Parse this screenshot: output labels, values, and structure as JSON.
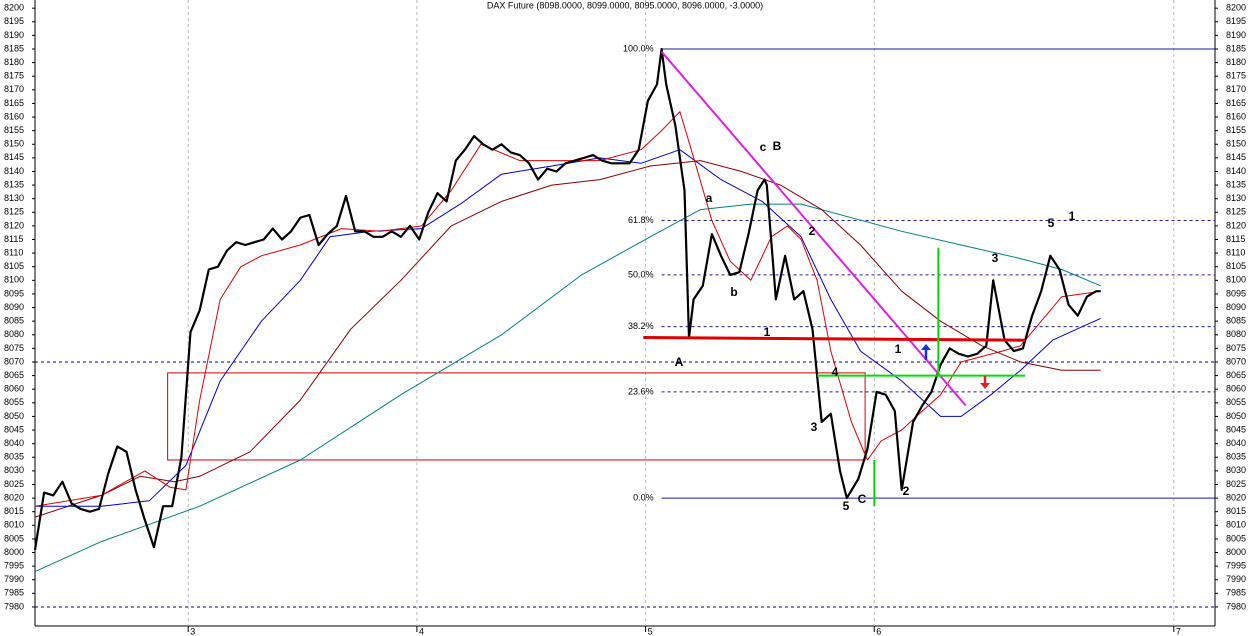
{
  "chart_data": {
    "type": "line",
    "title": "DAX Future (8098.0000, 8099.0000, 8095.0000, 8096.0000, -3.0000)",
    "xlim": [
      2.33,
      7.49
    ],
    "xticks": [
      3,
      4,
      5,
      6,
      {
        "value": 7.31,
        "label": "7"
      }
    ],
    "ylim": [
      7973,
      8203
    ],
    "yticks": [
      7980,
      7985,
      7990,
      7995,
      8000,
      8005,
      8010,
      8015,
      8020,
      8025,
      8030,
      8035,
      8040,
      8045,
      8050,
      8055,
      8060,
      8065,
      8070,
      8075,
      8080,
      8085,
      8090,
      8095,
      8100,
      8105,
      8110,
      8115,
      8120,
      8125,
      8130,
      8135,
      8140,
      8145,
      8150,
      8155,
      8160,
      8165,
      8170,
      8175,
      8180,
      8185,
      8190,
      8195,
      8200
    ],
    "grid": true,
    "series": [
      {
        "color": "#000000",
        "x": [
          2.33,
          2.37,
          2.41,
          2.45,
          2.49,
          2.53,
          2.57,
          2.61,
          2.65,
          2.69,
          2.73,
          2.77,
          2.81,
          2.85,
          2.89,
          2.93,
          2.97,
          3.01,
          3.05,
          3.09,
          3.13,
          3.17,
          3.21,
          3.25,
          3.29,
          3.33,
          3.37,
          3.41,
          3.45,
          3.49,
          3.53,
          3.57,
          3.61,
          3.65,
          3.69,
          3.73,
          3.77,
          3.81,
          3.85,
          3.89,
          3.93,
          3.97,
          4.01,
          4.05,
          4.09,
          4.13,
          4.17,
          4.21,
          4.25,
          4.29,
          4.33,
          4.37,
          4.41,
          4.45,
          4.49,
          4.53,
          4.57,
          4.61,
          4.65,
          4.69,
          4.73,
          4.77,
          4.81,
          4.85,
          4.89,
          4.93,
          4.97,
          5.01,
          5.05,
          5.07,
          5.09,
          5.13,
          5.17,
          5.19,
          5.21,
          5.25,
          5.29,
          5.33,
          5.37,
          5.41,
          5.45,
          5.49,
          5.52,
          5.53,
          5.57,
          5.61,
          5.65,
          5.69,
          5.73,
          5.77,
          5.81,
          5.85,
          5.88,
          5.93,
          5.97,
          6.01,
          6.05,
          6.09,
          6.12,
          6.17,
          6.21,
          6.25,
          6.29,
          6.33,
          6.37,
          6.41,
          6.45,
          6.49,
          6.52,
          6.57,
          6.61,
          6.65,
          6.69,
          6.73,
          6.77,
          6.81,
          6.85,
          6.89,
          6.93,
          6.97,
          6.99
        ],
        "values": [
          8001,
          8022,
          8021,
          8026,
          8018,
          8016,
          8015,
          8016,
          8029,
          8039,
          8037,
          8023,
          8012,
          8002,
          8017,
          8017,
          8035,
          8081,
          8089,
          8104,
          8105,
          8111,
          8114,
          8113,
          8114,
          8115,
          8119,
          8115,
          8118,
          8123,
          8124,
          8113,
          8117,
          8120,
          8131,
          8118,
          8118,
          8116,
          8116,
          8118,
          8116,
          8120,
          8115,
          8125,
          8132,
          8129,
          8144,
          8148,
          8153,
          8150,
          8148,
          8150,
          8147,
          8146,
          8143,
          8137,
          8141,
          8140,
          8143,
          8144,
          8145,
          8146,
          8144,
          8143,
          8143,
          8143,
          8148,
          8166,
          8172,
          8185,
          8172,
          8157,
          8133,
          8079,
          8093,
          8098,
          8117,
          8109,
          8102,
          8103,
          8117,
          8133,
          8137,
          8135,
          8093,
          8109,
          8093,
          8096,
          8082,
          8048,
          8051,
          8030,
          8020,
          8027,
          8038,
          8059,
          8058,
          8052,
          8023,
          8048,
          8054,
          8059,
          8069,
          8075,
          8073,
          8072,
          8073,
          8076,
          8100,
          8078,
          8074,
          8075,
          8087,
          8096,
          8109,
          8104,
          8091,
          8087,
          8094,
          8096,
          8096
        ]
      },
      {
        "color": "#e00000",
        "x": [
          2.33,
          2.62,
          2.81,
          2.92,
          2.99,
          3.05,
          3.14,
          3.23,
          3.32,
          3.49,
          3.67,
          3.84,
          4.02,
          4.15,
          4.28,
          4.45,
          4.63,
          4.8,
          4.98,
          5.07,
          5.15,
          5.2,
          5.29,
          5.37,
          5.46,
          5.55,
          5.62,
          5.68,
          5.75,
          5.81,
          5.9,
          5.97,
          6.03,
          6.12,
          6.21,
          6.29,
          6.38,
          6.47,
          6.56,
          6.64,
          6.73,
          6.82,
          6.91,
          6.99
        ],
        "values": [
          8017,
          8021,
          8030,
          8024,
          8023,
          8056,
          8093,
          8105,
          8109,
          8113,
          8119,
          8118,
          8120,
          8133,
          8150,
          8144,
          8144,
          8144,
          8148,
          8155,
          8162,
          8148,
          8122,
          8107,
          8100,
          8116,
          8120,
          8115,
          8100,
          8074,
          8048,
          8034,
          8041,
          8045,
          8052,
          8058,
          8070,
          8072,
          8074,
          8076,
          8085,
          8094,
          8095,
          8096
        ]
      },
      {
        "color": "#0000c8",
        "x": [
          2.33,
          2.62,
          2.83,
          2.99,
          3.14,
          3.32,
          3.49,
          3.62,
          3.8,
          4.02,
          4.19,
          4.37,
          4.59,
          4.8,
          4.98,
          5.15,
          5.33,
          5.51,
          5.68,
          5.81,
          5.94,
          6.12,
          6.29,
          6.38,
          6.51,
          6.64,
          6.78,
          6.91,
          6.99
        ],
        "values": [
          8017,
          8017,
          8019,
          8032,
          8063,
          8085,
          8100,
          8116,
          8118,
          8119,
          8128,
          8139,
          8142,
          8145,
          8143,
          8148,
          8137,
          8129,
          8116,
          8093,
          8074,
          8063,
          8050,
          8050,
          8058,
          8067,
          8078,
          8083,
          8086
        ]
      },
      {
        "color": "#8b0000",
        "x": [
          2.33,
          2.62,
          2.79,
          2.94,
          3.05,
          3.27,
          3.49,
          3.71,
          3.93,
          4.15,
          4.37,
          4.59,
          4.8,
          5.02,
          5.24,
          5.42,
          5.59,
          5.77,
          5.94,
          6.12,
          6.29,
          6.47,
          6.64,
          6.82,
          6.99
        ],
        "values": [
          8013,
          8021,
          8028,
          8026,
          8028,
          8037,
          8056,
          8082,
          8100,
          8120,
          8129,
          8135,
          8137,
          8142,
          8144,
          8140,
          8135,
          8126,
          8113,
          8096,
          8085,
          8076,
          8070,
          8067,
          8067
        ]
      },
      {
        "color": "#008080",
        "x": [
          2.33,
          2.62,
          3.05,
          3.49,
          3.93,
          4.37,
          4.72,
          5.02,
          5.24,
          5.46,
          5.68,
          5.9,
          6.12,
          6.38,
          6.64,
          6.82,
          6.99
        ],
        "values": [
          7993,
          8004,
          8017,
          8034,
          8058,
          8080,
          8102,
          8116,
          8126,
          8128,
          8128,
          8123,
          8118,
          8113,
          8108,
          8104,
          8098
        ]
      }
    ],
    "hlines": [
      8070,
      7980
    ],
    "fib_start": 5.07,
    "fib_levels": [
      {
        "label": "100.0%",
        "price": 8185,
        "style": "solid"
      },
      {
        "label": "61.8%",
        "price": 8122,
        "style": "dashed"
      },
      {
        "label": "50.0%",
        "price": 8102,
        "style": "dashed"
      },
      {
        "label": "38.2%",
        "price": 8083,
        "style": "dashed"
      },
      {
        "label": "23.6%",
        "price": 8059,
        "style": "dashed"
      },
      {
        "label": "0.0%",
        "price": 8020,
        "style": "solid"
      }
    ],
    "box": {
      "x": [
        2.91,
        5.96
      ],
      "values": [
        8066,
        8034
      ],
      "color": "#d00000"
    },
    "trendlines": [
      {
        "color": "#e020e0",
        "x": [
          5.07,
          6.4
        ],
        "values": [
          8184,
          8054
        ]
      },
      {
        "color": "#e00000",
        "x": [
          4.99,
          6.66
        ],
        "values": [
          8079,
          8078
        ]
      },
      {
        "color": "#00e000",
        "x": [
          5.75,
          6.66
        ],
        "values": [
          8065,
          8065
        ]
      },
      {
        "color": "#00e000",
        "x": [
          6.0,
          6.0
        ],
        "values": [
          8034,
          8017
        ]
      },
      {
        "color": "#00e000",
        "x": [
          6.28,
          6.28
        ],
        "values": [
          8112,
          8065
        ]
      }
    ],
    "wave_labels": [
      {
        "text": "A",
        "color": "#8b0000"
      },
      {
        "text": "c",
        "color": "#2020c0"
      },
      {
        "text": "B",
        "color": "#8b0000"
      },
      {
        "text": "a",
        "color": "#2020c0"
      },
      {
        "text": "b",
        "color": "#2020c0"
      },
      {
        "text": "C",
        "color": "#8b0000"
      },
      {
        "text": "1",
        "color": "#2020c0"
      },
      {
        "text": "2",
        "color": "#2020c0"
      },
      {
        "text": "3",
        "color": "#2020c0"
      },
      {
        "text": "4",
        "color": "#2020c0"
      },
      {
        "text": "5",
        "color": "#2020c0"
      },
      {
        "text": "1",
        "color": "#2020c0"
      },
      {
        "text": "2",
        "color": "#2020c0"
      },
      {
        "text": "3",
        "color": "#2020c0"
      },
      {
        "text": "5",
        "color": "#2020c0"
      },
      {
        "text": "1",
        "color": "#8b0000"
      }
    ]
  }
}
